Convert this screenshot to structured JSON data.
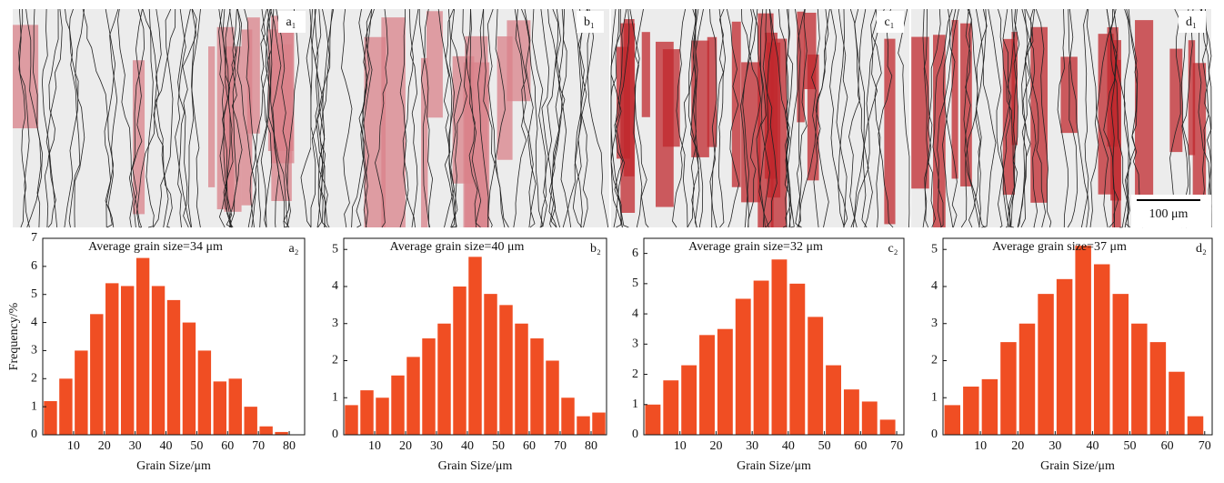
{
  "micrographs": [
    {
      "label": "a₁"
    },
    {
      "label": "b₁"
    },
    {
      "label": "c₁"
    },
    {
      "label": "d₁"
    }
  ],
  "scale_bar": "100 μm",
  "chart_data": [
    {
      "type": "bar",
      "title": "Average grain size=34 μm",
      "panel": "a₂",
      "x_label": "Grain Size/μm",
      "y_label": "Frequency/%",
      "color": "#f04e23",
      "x": [
        2.5,
        7.5,
        12.5,
        17.5,
        22.5,
        27.5,
        32.5,
        37.5,
        42.5,
        47.5,
        52.5,
        57.5,
        62.5,
        67.5,
        72.5,
        77.5
      ],
      "values": [
        1.2,
        2,
        3,
        4.3,
        5.4,
        5.3,
        6.3,
        5.3,
        4.8,
        4,
        3,
        1.9,
        2,
        1,
        0.3,
        0.1
      ],
      "xlim": [
        0,
        85
      ],
      "xticks": [
        10,
        20,
        30,
        40,
        50,
        60,
        70,
        80
      ],
      "ylim": [
        0,
        7
      ],
      "yticks": [
        0,
        1,
        2,
        3,
        4,
        5,
        6,
        7
      ]
    },
    {
      "type": "bar",
      "title": "Average grain size=40 μm",
      "panel": "b₂",
      "x_label": "Grain Size/μm",
      "color": "#f04e23",
      "x": [
        2.5,
        7.5,
        12.5,
        17.5,
        22.5,
        27.5,
        32.5,
        37.5,
        42.5,
        47.5,
        52.5,
        57.5,
        62.5,
        67.5,
        72.5,
        77.5,
        82.5
      ],
      "values": [
        0.8,
        1.2,
        1,
        1.6,
        2.1,
        2.6,
        3,
        4,
        4.8,
        3.8,
        3.5,
        3,
        2.6,
        2,
        1,
        0.5,
        0.6
      ],
      "xlim": [
        0,
        85
      ],
      "xticks": [
        10,
        20,
        30,
        40,
        50,
        60,
        70,
        80
      ],
      "ylim": [
        0,
        5.3
      ],
      "yticks": [
        0,
        1,
        2,
        3,
        4,
        5
      ]
    },
    {
      "type": "bar",
      "title": "Average grain size=32 μm",
      "panel": "c₂",
      "x_label": "Grain Size/μm",
      "color": "#f04e23",
      "x": [
        2.5,
        7.5,
        12.5,
        17.5,
        22.5,
        27.5,
        32.5,
        37.5,
        42.5,
        47.5,
        52.5,
        57.5,
        62.5,
        67.5
      ],
      "values": [
        1,
        1.8,
        2.3,
        3.3,
        3.5,
        4.5,
        5.1,
        5.8,
        5,
        3.9,
        2.3,
        1.5,
        1.1,
        0.5
      ],
      "xlim": [
        0,
        72
      ],
      "xticks": [
        10,
        20,
        30,
        40,
        50,
        60,
        70
      ],
      "ylim": [
        0,
        6.5
      ],
      "yticks": [
        0,
        1,
        2,
        3,
        4,
        5,
        6
      ]
    },
    {
      "type": "bar",
      "title": "Average grain size=37 μm",
      "panel": "d₂",
      "x_label": "Grain Size/μm",
      "color": "#f04e23",
      "x": [
        2.5,
        7.5,
        12.5,
        17.5,
        22.5,
        27.5,
        32.5,
        37.5,
        42.5,
        47.5,
        52.5,
        57.5,
        62.5,
        67.5
      ],
      "values": [
        0.8,
        1.3,
        1.5,
        2.5,
        3,
        3.8,
        4.2,
        5.1,
        4.6,
        3.8,
        3,
        2.5,
        1.7,
        0.5
      ],
      "xlim": [
        0,
        72
      ],
      "xticks": [
        10,
        20,
        30,
        40,
        50,
        60,
        70
      ],
      "ylim": [
        0,
        5.3
      ],
      "yticks": [
        0,
        1,
        2,
        3,
        4,
        5
      ]
    }
  ]
}
